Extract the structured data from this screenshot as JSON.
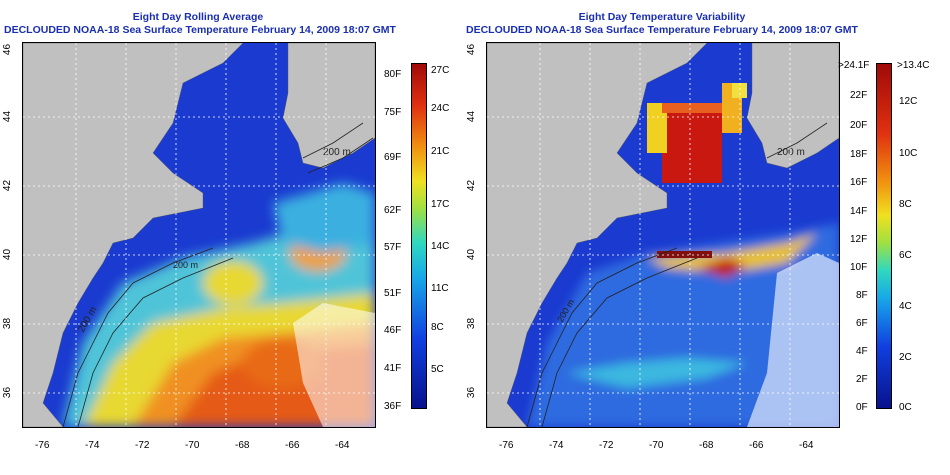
{
  "left_panel": {
    "title_line1": "Eight Day Rolling Average",
    "title_line2": "DECLOUDED NOAA-18 Sea Surface Temperature February 14, 2009 18:07 GMT",
    "colorbar_f": [
      "80F",
      "75F",
      "69F",
      "62F",
      "57F",
      "51F",
      "46F",
      "41F",
      "36F"
    ],
    "colorbar_c": [
      "27C",
      "24C",
      "21C",
      "17C",
      "14C",
      "11C",
      "8C",
      "5C"
    ],
    "contour_labels": [
      "200 m",
      "200 m",
      "200 m"
    ]
  },
  "right_panel": {
    "title_line1": "Eight Day Temperature Variability",
    "title_line2": "DECLOUDED NOAA-18 Sea Surface Temperature February 14, 2009 18:07 GMT",
    "colorbar_f": [
      ">24.1F",
      "22F",
      "20F",
      "18F",
      "16F",
      "14F",
      "12F",
      "10F",
      "8F",
      "6F",
      "4F",
      "2F",
      "0F"
    ],
    "colorbar_c": [
      ">13.4C",
      "12C",
      "10C",
      "8C",
      "6C",
      "4C",
      "2C",
      "0C"
    ],
    "contour_labels": [
      "200 m",
      "200 m"
    ]
  },
  "lat_labels": [
    "46",
    "44",
    "42",
    "40",
    "38",
    "36"
  ],
  "lon_labels": [
    "-76",
    "-74",
    "-72",
    "-70",
    "-68",
    "-66",
    "-64"
  ],
  "colors": {
    "land": "#c0c0c0",
    "title": "#1a2fb0",
    "cold": "#0a1fa8",
    "warm": "#e84b10"
  }
}
